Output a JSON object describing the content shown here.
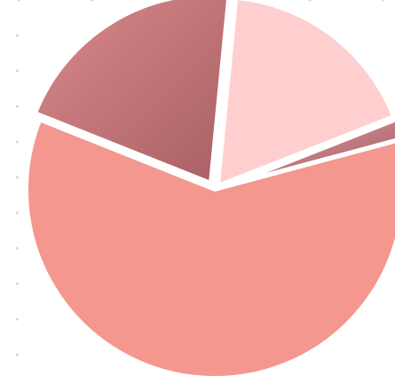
{
  "chart_data": {
    "type": "pie",
    "title": "",
    "legend": "none",
    "start_angle_deg": -15,
    "direction": "clockwise",
    "slices": [
      {
        "value": 60.2,
        "color": "#F4978E",
        "explode": 0.0,
        "gradient": null
      },
      {
        "value": 20.5,
        "color": "#CE7E83",
        "explode": 0.045,
        "gradient": [
          "#DA898B",
          "#A86064"
        ]
      },
      {
        "value": 17.5,
        "color": "#FFCFD0",
        "explode": 0.03,
        "gradient": null
      },
      {
        "value": 1.8,
        "color": "#D89196",
        "explode": 0.12,
        "gradient": [
          "#E7A6AB",
          "#9A5359"
        ]
      }
    ]
  },
  "colors": {
    "background": "#FFFFFF",
    "watermark": "#E8CFD2",
    "slice_outline": "#FFFFFF"
  }
}
